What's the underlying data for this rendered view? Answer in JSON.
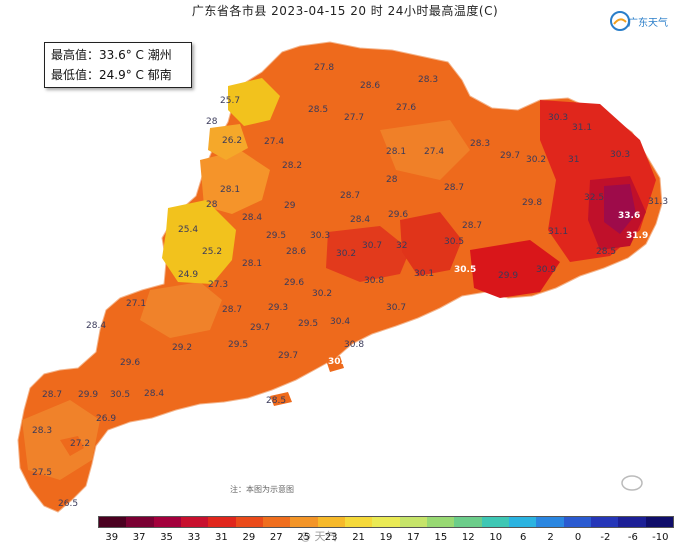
{
  "title": "广东省各市县 2023-04-15 20 时 24小时最高温度(C)",
  "logo_text": "广东天气",
  "info": {
    "max_line": "最高值：33.6° C 潮州",
    "min_line": "最低值：24.9° C 郁南"
  },
  "note": "注：本图为示意图",
  "watermark": "@ 天气",
  "colors": {
    "hot_red": "#d9161a",
    "hot_dark": "#9e0b4a",
    "orange_main": "#ee6a1c",
    "orange_light": "#f5942a",
    "yellow": "#f2c21d",
    "label": "#3a3a5a"
  },
  "stations": [
    {
      "v": "27.8"
    },
    {
      "v": "28.6"
    },
    {
      "v": "28.3"
    },
    {
      "v": "25.7"
    },
    {
      "v": "28.5"
    },
    {
      "v": "27.7"
    },
    {
      "v": "27.6"
    },
    {
      "v": "28"
    },
    {
      "v": "26.2"
    },
    {
      "v": "27.4"
    },
    {
      "v": "28.2"
    },
    {
      "v": "28.1"
    },
    {
      "v": "27.4"
    },
    {
      "v": "28.3"
    },
    {
      "v": "29.7"
    },
    {
      "v": "30.2"
    },
    {
      "v": "30.3"
    },
    {
      "v": "31.1"
    },
    {
      "v": "31"
    },
    {
      "v": "30.3"
    },
    {
      "v": "28.1"
    },
    {
      "v": "28.7"
    },
    {
      "v": "28"
    },
    {
      "v": "28.7"
    },
    {
      "v": "29.8"
    },
    {
      "v": "32.5"
    },
    {
      "v": "28.4"
    },
    {
      "v": "29"
    },
    {
      "v": "28.4"
    },
    {
      "v": "29.6"
    },
    {
      "v": "28.7"
    },
    {
      "v": "31.1"
    },
    {
      "v": "33.6"
    },
    {
      "v": "25.4"
    },
    {
      "v": "29.5"
    },
    {
      "v": "30.3"
    },
    {
      "v": "25.2"
    },
    {
      "v": "28.1"
    },
    {
      "v": "28.6"
    },
    {
      "v": "30.2"
    },
    {
      "v": "30.7"
    },
    {
      "v": "32"
    },
    {
      "v": "30.5"
    },
    {
      "v": "31.9"
    },
    {
      "v": "31.3"
    },
    {
      "v": "28.5"
    },
    {
      "v": "24.9"
    },
    {
      "v": "27.3"
    },
    {
      "v": "29.6"
    },
    {
      "v": "30.8"
    },
    {
      "v": "30.1"
    },
    {
      "v": "30.5"
    },
    {
      "v": "29.9"
    },
    {
      "v": "30.9"
    },
    {
      "v": "27.1"
    },
    {
      "v": "30.2"
    },
    {
      "v": "30.7"
    },
    {
      "v": "32"
    },
    {
      "v": "28.7"
    },
    {
      "v": "29.3"
    },
    {
      "v": "30.4"
    },
    {
      "v": "28.4"
    },
    {
      "v": "29.7"
    },
    {
      "v": "29.5"
    },
    {
      "v": "29.2"
    },
    {
      "v": "29.5"
    },
    {
      "v": "29.7"
    },
    {
      "v": "30.8"
    },
    {
      "v": "29.6"
    },
    {
      "v": "30.6"
    },
    {
      "v": "28.4"
    },
    {
      "v": "28.7"
    },
    {
      "v": "29.9"
    },
    {
      "v": "30.5"
    },
    {
      "v": "28.5"
    },
    {
      "v": "26.9"
    },
    {
      "v": "28.3"
    },
    {
      "v": "27.2"
    },
    {
      "v": "27.5"
    },
    {
      "v": "26.5"
    },
    {
      "v": "28"
    }
  ],
  "legend": {
    "ticks": [
      "39",
      "37",
      "35",
      "33",
      "31",
      "29",
      "27",
      "25",
      "23",
      "21",
      "19",
      "17",
      "15",
      "12",
      "10",
      "6",
      "2",
      "0",
      "-2",
      "-6",
      "-10"
    ],
    "colors": [
      "#4a0020",
      "#7a0033",
      "#a3003c",
      "#c8102e",
      "#e0261c",
      "#ea4a1a",
      "#ef6e1e",
      "#f39528",
      "#f6b92a",
      "#f5d93a",
      "#eaea55",
      "#c6e46a",
      "#98d973",
      "#6ccd8a",
      "#3ec7b4",
      "#2bb3e0",
      "#2a86e0",
      "#2a5ad0",
      "#2536b8",
      "#1c1f96",
      "#0f0d6a"
    ]
  }
}
